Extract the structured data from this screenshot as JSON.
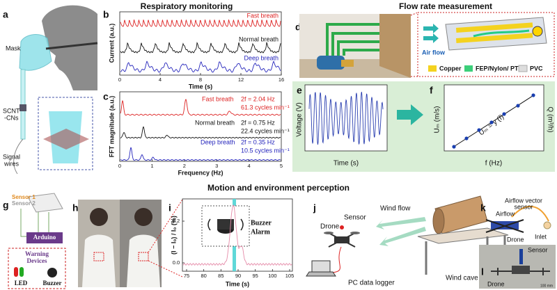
{
  "titles": [
    "Respiratory monitoring",
    "Flow rate measurement",
    "Motion and environment perception"
  ],
  "panels": {
    "a": {
      "letter": "a",
      "labels": [
        "Mask",
        "SCNT",
        "-CNs",
        "Signal",
        "wires"
      ]
    },
    "b": {
      "letter": "b",
      "traces": [
        "Fast breath",
        "Normal breath",
        "Deep breath"
      ],
      "x_label": "Time (s)",
      "y_label": "Current (a.u.)",
      "x_ticks": [
        0,
        4,
        8,
        12,
        16
      ]
    },
    "c": {
      "letter": "c",
      "x_label": "Frequency (Hz)",
      "y_label": "FFT magnitude (a.u.)",
      "x_ticks": [
        0,
        1,
        2,
        3,
        4,
        5
      ],
      "peaks": [
        {
          "name": "Fast breath",
          "frequency": "2f = 2.04 Hz",
          "rate": "61.3 cycles min⁻¹"
        },
        {
          "name": "Normal breath",
          "frequency": "2f = 0.75 Hz",
          "rate": "22.4 cycles min⁻¹"
        },
        {
          "name": "Deep breath",
          "frequency": "2f = 0.35 Hz",
          "rate": "10.5 cycles min⁻¹"
        }
      ]
    },
    "d": {
      "letter": "d",
      "flow_label": "Air flow",
      "legend": [
        "Copper",
        "FEP/Nylon/ PTFE",
        "PVC"
      ]
    },
    "e": {
      "letter": "e",
      "x_label": "Time (s)",
      "y_label": "Voltage (V)"
    },
    "f": {
      "letter": "f",
      "x_label": "f (Hz)",
      "y_label": "Uₘ (m/s)",
      "y2_label": "Q (m³/h)",
      "equation": "Uₘ = y (f)"
    },
    "g": {
      "letter": "g",
      "sensors": [
        "Sensor 1",
        "Sensor 2"
      ],
      "controller": "Arduino",
      "warning": [
        "Warning",
        "Devices"
      ],
      "devices": [
        "LED",
        "Buzzer"
      ]
    },
    "h": {
      "letter": "h"
    },
    "i": {
      "letter": "i",
      "x_label": "Time (s)",
      "y_label": "(I − I₀) / I₀ (%)",
      "x_ticks": [
        75,
        80,
        85,
        90,
        95,
        100,
        105
      ],
      "y_ticks": [
        {
          "value": 0,
          "label": "0.0"
        },
        {
          "value": 0.2,
          "label": "0.2"
        }
      ],
      "alarm": [
        "Buzzer",
        "Alarm"
      ]
    },
    "j": {
      "letter": "j",
      "labels": [
        "Drone",
        "Sensor",
        "Wind flow",
        "Wind cave",
        "PC data logger"
      ]
    },
    "k": {
      "letter": "k",
      "labels": [
        "Airflow vector",
        "sensor",
        "Airflow",
        "Drone",
        "Inlet"
      ]
    },
    "l": {
      "letter": "l",
      "labels": [
        "Sensor",
        "Drone",
        "100 mm"
      ]
    }
  }
}
